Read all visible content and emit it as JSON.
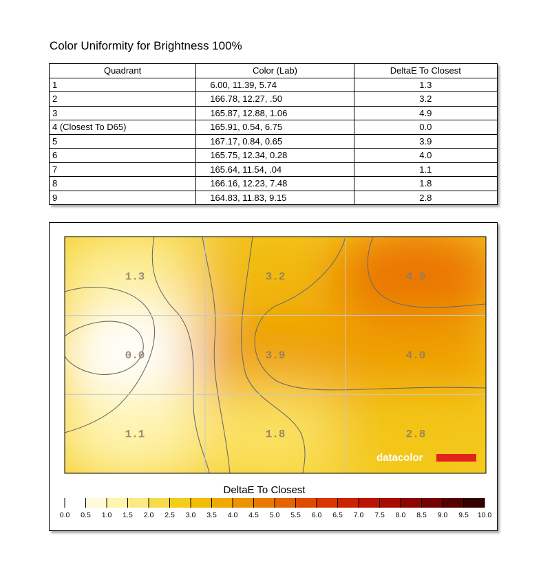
{
  "title": "Color Uniformity for Brightness 100%",
  "table": {
    "headers": [
      "Quadrant",
      "Color (Lab)",
      "DeltaE To Closest"
    ],
    "rows": [
      [
        "1",
        "6.00,  11.39,   5.74",
        "1.3"
      ],
      [
        "2",
        "166.78,  12.27,     .50",
        "3.2"
      ],
      [
        "3",
        "165.87,  12.88,   1.06",
        "4.9"
      ],
      [
        "4 (Closest To D65)",
        "165.91,   0.54,   6.75",
        "0.0"
      ],
      [
        "5",
        "167.17,   0.84,   0.65",
        "3.9"
      ],
      [
        "6",
        "165.75,  12.34,   0.28",
        "4.0"
      ],
      [
        "7",
        "165.64,  11.54,     .04",
        "1.1"
      ],
      [
        "8",
        "166.16,  12.23,   7.48",
        "1.8"
      ],
      [
        "9",
        "164.83,  11.83,   9.15",
        "2.8"
      ]
    ]
  },
  "chart_data": {
    "type": "heatmap",
    "grid": {
      "rows": 3,
      "cols": 3
    },
    "cells": [
      [
        "1.3",
        "3.2",
        "4.9"
      ],
      [
        "0.0",
        "3.9",
        "4.0"
      ],
      [
        "1.1",
        "1.8",
        "2.8"
      ]
    ],
    "values": [
      [
        1.3,
        3.2,
        4.9
      ],
      [
        0.0,
        3.9,
        4.0
      ],
      [
        1.1,
        1.8,
        2.8
      ]
    ],
    "scale_title": "DeltaE To Closest",
    "scale_ticks": [
      "0.0",
      "0.5",
      "1.0",
      "1.5",
      "2.0",
      "2.5",
      "3.0",
      "3.5",
      "4.0",
      "4.5",
      "5.0",
      "5.5",
      "6.0",
      "6.5",
      "7.0",
      "7.5",
      "8.0",
      "8.5",
      "9.0",
      "9.5",
      "10.0"
    ],
    "scale_range": [
      0,
      10
    ],
    "scale_colors": [
      "#ffffff",
      "#fffbd8",
      "#fff4ac",
      "#fde984",
      "#f8db4a",
      "#f3cd1a",
      "#f1bd06",
      "#efa900",
      "#ec9300",
      "#e97900",
      "#e56300",
      "#e04a00",
      "#d93500",
      "#cd2200",
      "#bc1400",
      "#a70c00",
      "#8e0600",
      "#720300",
      "#540100",
      "#350000"
    ],
    "logo": "datacolor",
    "logo_bar_color": "#e2231a"
  }
}
